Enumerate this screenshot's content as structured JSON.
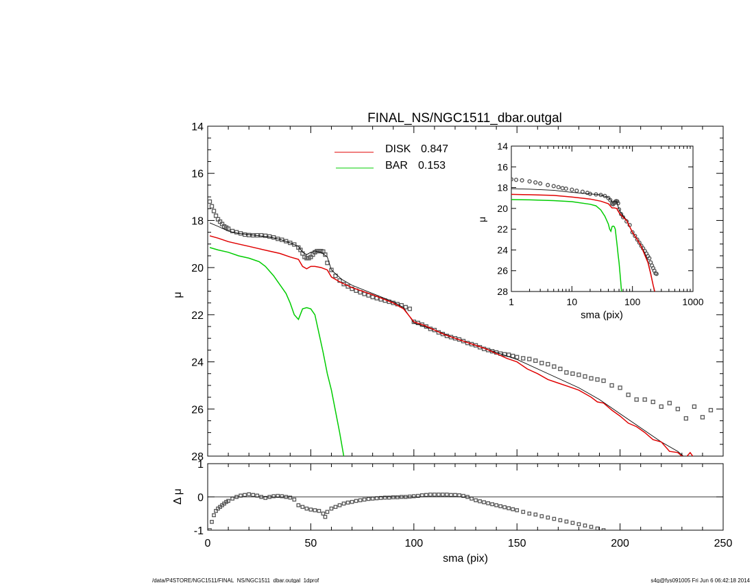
{
  "footer": {
    "left": "/data/P4STORE/NGC1511/FINAL_NS/NGC1511_dbar.outgal_1dprof",
    "right": "s4g@fys091005  Fri Jun  6 06:42:18 2014"
  },
  "chart_data": [
    {
      "type": "line",
      "title": "FINAL_NS/NGC1511_dbar.outgal",
      "xlabel": "",
      "ylabel": "μ",
      "xlim": [
        0,
        250
      ],
      "ylim": [
        28,
        14
      ],
      "yticks": [
        "14",
        "16",
        "18",
        "20",
        "22",
        "24",
        "26",
        "28"
      ],
      "legend_placement": "top-center",
      "legend": [
        {
          "name": "DISK",
          "value": "0.847",
          "color": "#e00000"
        },
        {
          "name": "BAR",
          "value": "0.153",
          "color": "#00cc00"
        }
      ],
      "series": [
        {
          "key": "data",
          "style": "squares",
          "color": "#555555",
          "x": [
            1,
            2,
            3,
            4,
            5,
            6,
            7,
            8,
            9,
            10,
            12,
            14,
            16,
            18,
            20,
            22,
            24,
            26,
            28,
            30,
            32,
            34,
            36,
            38,
            40,
            42,
            44,
            45,
            46,
            47,
            48,
            49,
            50,
            51,
            52,
            53,
            54,
            55,
            56,
            57,
            58,
            60,
            62,
            64,
            66,
            68,
            70,
            72,
            74,
            76,
            78,
            80,
            82,
            84,
            86,
            88,
            90,
            92,
            94,
            96,
            98,
            100,
            102,
            104,
            106,
            108,
            110,
            112,
            114,
            116,
            118,
            120,
            122,
            124,
            126,
            128,
            130,
            132,
            134,
            136,
            138,
            140,
            142,
            144,
            146,
            148,
            150,
            153,
            156,
            159,
            162,
            165,
            168,
            171,
            174,
            177,
            180,
            183,
            186,
            189,
            192,
            196,
            200,
            204,
            208,
            212,
            216,
            220,
            224,
            228,
            232,
            236,
            240,
            244
          ],
          "y": [
            17.2,
            17.4,
            17.6,
            17.8,
            17.95,
            18.05,
            18.15,
            18.25,
            18.3,
            18.35,
            18.45,
            18.5,
            18.55,
            18.6,
            18.62,
            18.63,
            18.63,
            18.63,
            18.65,
            18.68,
            18.72,
            18.78,
            18.82,
            18.88,
            18.95,
            19.02,
            19.15,
            19.25,
            19.4,
            19.55,
            19.6,
            19.6,
            19.55,
            19.45,
            19.35,
            19.3,
            19.3,
            19.3,
            19.32,
            19.45,
            19.8,
            20.1,
            20.35,
            20.55,
            20.7,
            20.8,
            20.9,
            20.98,
            21.05,
            21.12,
            21.18,
            21.25,
            21.3,
            21.35,
            21.4,
            21.45,
            21.5,
            21.55,
            21.6,
            21.68,
            21.75,
            22.3,
            22.35,
            22.42,
            22.5,
            22.6,
            22.65,
            22.75,
            22.82,
            22.9,
            22.95,
            23.0,
            23.05,
            23.12,
            23.2,
            23.25,
            23.3,
            23.38,
            23.45,
            23.5,
            23.55,
            23.6,
            23.65,
            23.68,
            23.7,
            23.75,
            23.8,
            23.85,
            23.88,
            23.95,
            24.05,
            24.1,
            24.2,
            24.3,
            24.45,
            24.5,
            24.55,
            24.62,
            24.7,
            24.75,
            24.8,
            25.0,
            25.1,
            25.4,
            25.6,
            25.6,
            25.7,
            25.9,
            25.75,
            26.0,
            26.4,
            25.9,
            26.35,
            26.05
          ]
        },
        {
          "key": "model",
          "style": "line",
          "color": "#000000",
          "x": [
            1,
            5,
            10,
            15,
            20,
            25,
            30,
            35,
            40,
            44,
            46,
            48,
            50,
            52,
            55,
            58,
            60,
            65,
            70,
            80,
            90,
            95,
            100,
            110,
            120,
            130,
            140,
            150,
            160,
            170,
            180,
            190,
            200,
            210,
            220,
            228,
            232,
            236,
            240
          ],
          "y": [
            18.1,
            18.25,
            18.45,
            18.55,
            18.6,
            18.65,
            18.7,
            18.8,
            18.95,
            19.1,
            19.35,
            19.45,
            19.35,
            19.3,
            19.35,
            19.55,
            20.1,
            20.5,
            20.75,
            21.1,
            21.45,
            21.7,
            22.35,
            22.65,
            23.0,
            23.3,
            23.6,
            23.9,
            24.3,
            24.7,
            25.1,
            25.6,
            26.2,
            26.8,
            27.4,
            27.8,
            28.1,
            28.3,
            28.5
          ]
        },
        {
          "key": "disk",
          "style": "line",
          "color": "#e00000",
          "x": [
            1,
            5,
            10,
            15,
            20,
            25,
            30,
            35,
            40,
            44,
            46,
            48,
            50,
            52,
            55,
            58,
            60,
            65,
            70,
            80,
            90,
            95,
            100,
            105,
            110,
            115,
            120,
            125,
            130,
            135,
            140,
            145,
            150,
            155,
            160,
            165,
            170,
            175,
            180,
            183,
            186,
            189,
            192,
            196,
            200,
            204,
            208,
            212,
            216,
            220,
            224,
            228,
            230,
            232,
            234,
            236
          ],
          "y": [
            18.65,
            18.75,
            18.9,
            19.0,
            19.1,
            19.2,
            19.3,
            19.4,
            19.55,
            19.65,
            19.95,
            20.05,
            19.95,
            19.95,
            20.0,
            20.1,
            20.4,
            20.65,
            20.85,
            21.15,
            21.5,
            21.75,
            22.3,
            22.45,
            22.65,
            22.85,
            23.0,
            23.15,
            23.3,
            23.45,
            23.65,
            23.85,
            24.0,
            24.3,
            24.5,
            24.75,
            24.9,
            25.05,
            25.2,
            25.35,
            25.5,
            25.7,
            25.75,
            26.05,
            26.3,
            26.6,
            26.75,
            27.0,
            27.3,
            27.4,
            27.8,
            27.85,
            28.0,
            28.05,
            27.85,
            28.1
          ]
        },
        {
          "key": "bar",
          "style": "line",
          "color": "#00cc00",
          "x": [
            1,
            5,
            10,
            15,
            20,
            25,
            28,
            30,
            32,
            34,
            36,
            38,
            40,
            42,
            44,
            46,
            48,
            50,
            52,
            54,
            56,
            58,
            60,
            62,
            64,
            66
          ],
          "y": [
            19.15,
            19.25,
            19.35,
            19.5,
            19.6,
            19.75,
            19.95,
            20.15,
            20.35,
            20.6,
            20.85,
            21.1,
            21.5,
            22.0,
            22.2,
            21.75,
            21.7,
            21.75,
            22.0,
            22.8,
            23.6,
            24.5,
            25.2,
            26.1,
            27.0,
            28.0
          ]
        }
      ]
    },
    {
      "type": "scatter",
      "xlabel": "sma (pix)",
      "ylabel": "Δ μ",
      "xlim": [
        0,
        250
      ],
      "ylim": [
        -1,
        1
      ],
      "yticks": [
        "1",
        "0",
        "-1"
      ],
      "xticks": [
        "0",
        "50",
        "100",
        "150",
        "200",
        "250"
      ],
      "zero_line": true,
      "series": [
        {
          "key": "residual",
          "style": "squares",
          "color": "#555555",
          "x": [
            1,
            2,
            3,
            4,
            5,
            6,
            7,
            8,
            9,
            10,
            12,
            14,
            16,
            18,
            20,
            22,
            24,
            26,
            28,
            30,
            32,
            34,
            36,
            38,
            40,
            42,
            44,
            46,
            48,
            50,
            52,
            54,
            56,
            57,
            58,
            60,
            62,
            64,
            66,
            68,
            70,
            72,
            74,
            76,
            78,
            80,
            82,
            84,
            86,
            88,
            90,
            92,
            94,
            96,
            98,
            100,
            102,
            104,
            106,
            108,
            110,
            112,
            114,
            116,
            118,
            120,
            122,
            124,
            126,
            128,
            130,
            132,
            134,
            136,
            138,
            140,
            142,
            144,
            146,
            148,
            150,
            153,
            156,
            159,
            162,
            165,
            168,
            171,
            174,
            177,
            180,
            183,
            186,
            189,
            192
          ],
          "y": [
            -1.0,
            -0.75,
            -0.55,
            -0.42,
            -0.35,
            -0.3,
            -0.25,
            -0.2,
            -0.15,
            -0.12,
            -0.05,
            0.0,
            0.04,
            0.06,
            0.08,
            0.06,
            0.04,
            0.0,
            -0.03,
            0.0,
            0.02,
            0.03,
            0.02,
            0.0,
            -0.02,
            -0.08,
            -0.25,
            -0.3,
            -0.35,
            -0.38,
            -0.4,
            -0.42,
            -0.5,
            -0.6,
            -0.45,
            -0.35,
            -0.3,
            -0.25,
            -0.2,
            -0.17,
            -0.15,
            -0.12,
            -0.1,
            -0.08,
            -0.06,
            -0.05,
            -0.04,
            -0.03,
            -0.02,
            -0.02,
            -0.01,
            -0.01,
            0.0,
            0.0,
            0.01,
            0.02,
            0.03,
            0.05,
            0.06,
            0.07,
            0.07,
            0.07,
            0.07,
            0.07,
            0.06,
            0.06,
            0.05,
            0.03,
            0.0,
            -0.05,
            -0.1,
            -0.13,
            -0.16,
            -0.19,
            -0.22,
            -0.25,
            -0.28,
            -0.31,
            -0.34,
            -0.37,
            -0.4,
            -0.45,
            -0.5,
            -0.53,
            -0.58,
            -0.62,
            -0.66,
            -0.7,
            -0.74,
            -0.78,
            -0.82,
            -0.86,
            -0.9,
            -0.95,
            -1.0
          ]
        }
      ]
    },
    {
      "type": "line",
      "xlabel": "sma (pix)",
      "ylabel": "μ",
      "xscale": "log",
      "xlim": [
        1,
        1000
      ],
      "ylim": [
        28,
        14
      ],
      "yticks": [
        "14",
        "16",
        "18",
        "20",
        "22",
        "24",
        "26",
        "28"
      ],
      "xticks": [
        "1",
        "10",
        "100",
        "1000"
      ],
      "series": [
        {
          "key": "data",
          "style": "circles",
          "color": "#555555",
          "x": [
            1,
            1.2,
            1.5,
            2,
            2.5,
            3,
            4,
            5,
            6,
            7,
            8,
            10,
            12,
            15,
            18,
            20,
            25,
            30,
            35,
            40,
            43,
            46,
            48,
            50,
            52,
            54,
            56,
            58,
            60,
            65,
            70,
            80,
            90,
            100,
            110,
            120,
            130,
            140,
            150,
            160,
            170,
            180,
            190,
            200,
            210,
            220,
            230,
            240,
            250
          ],
          "y": [
            17.2,
            17.25,
            17.3,
            17.4,
            17.5,
            17.6,
            17.75,
            17.85,
            17.95,
            18.05,
            18.1,
            18.2,
            18.3,
            18.4,
            18.5,
            18.6,
            18.65,
            18.7,
            18.8,
            19.0,
            19.2,
            19.55,
            19.6,
            19.5,
            19.35,
            19.3,
            19.32,
            19.5,
            20.1,
            20.55,
            20.85,
            21.25,
            21.6,
            22.3,
            22.65,
            23.0,
            23.3,
            23.6,
            23.85,
            24.1,
            24.35,
            24.6,
            24.8,
            25.2,
            25.5,
            25.75,
            26.0,
            26.25,
            26.3
          ]
        },
        {
          "key": "model",
          "style": "line",
          "color": "#000000",
          "x": [
            1,
            2,
            5,
            10,
            20,
            30,
            40,
            46,
            50,
            55,
            60,
            70,
            80,
            100,
            120,
            140,
            160,
            180,
            200,
            220,
            230,
            240
          ],
          "y": [
            18.1,
            18.15,
            18.25,
            18.45,
            18.6,
            18.7,
            18.95,
            19.35,
            19.35,
            19.35,
            20.1,
            20.75,
            21.1,
            22.35,
            23.0,
            23.6,
            24.3,
            25.1,
            26.2,
            27.4,
            28.0,
            28.5
          ]
        },
        {
          "key": "disk",
          "style": "line",
          "color": "#e00000",
          "x": [
            1,
            2,
            5,
            10,
            20,
            30,
            40,
            46,
            50,
            55,
            60,
            70,
            80,
            100,
            120,
            140,
            160,
            180,
            200,
            220,
            236
          ],
          "y": [
            18.65,
            18.68,
            18.75,
            18.9,
            19.1,
            19.3,
            19.55,
            19.95,
            19.95,
            20.0,
            20.4,
            20.85,
            21.15,
            22.3,
            23.0,
            23.65,
            24.5,
            25.2,
            26.3,
            27.4,
            28.1
          ]
        },
        {
          "key": "bar",
          "style": "line",
          "color": "#00cc00",
          "x": [
            1,
            2,
            5,
            10,
            20,
            25,
            30,
            35,
            40,
            42,
            44,
            46,
            48,
            50,
            52,
            54,
            56,
            58,
            60,
            62,
            64,
            66
          ],
          "y": [
            19.15,
            19.18,
            19.25,
            19.35,
            19.6,
            19.75,
            20.15,
            20.75,
            21.5,
            22.0,
            22.2,
            21.75,
            21.7,
            21.75,
            22.0,
            22.8,
            23.6,
            24.5,
            25.2,
            26.1,
            27.0,
            28.0
          ]
        }
      ]
    }
  ]
}
